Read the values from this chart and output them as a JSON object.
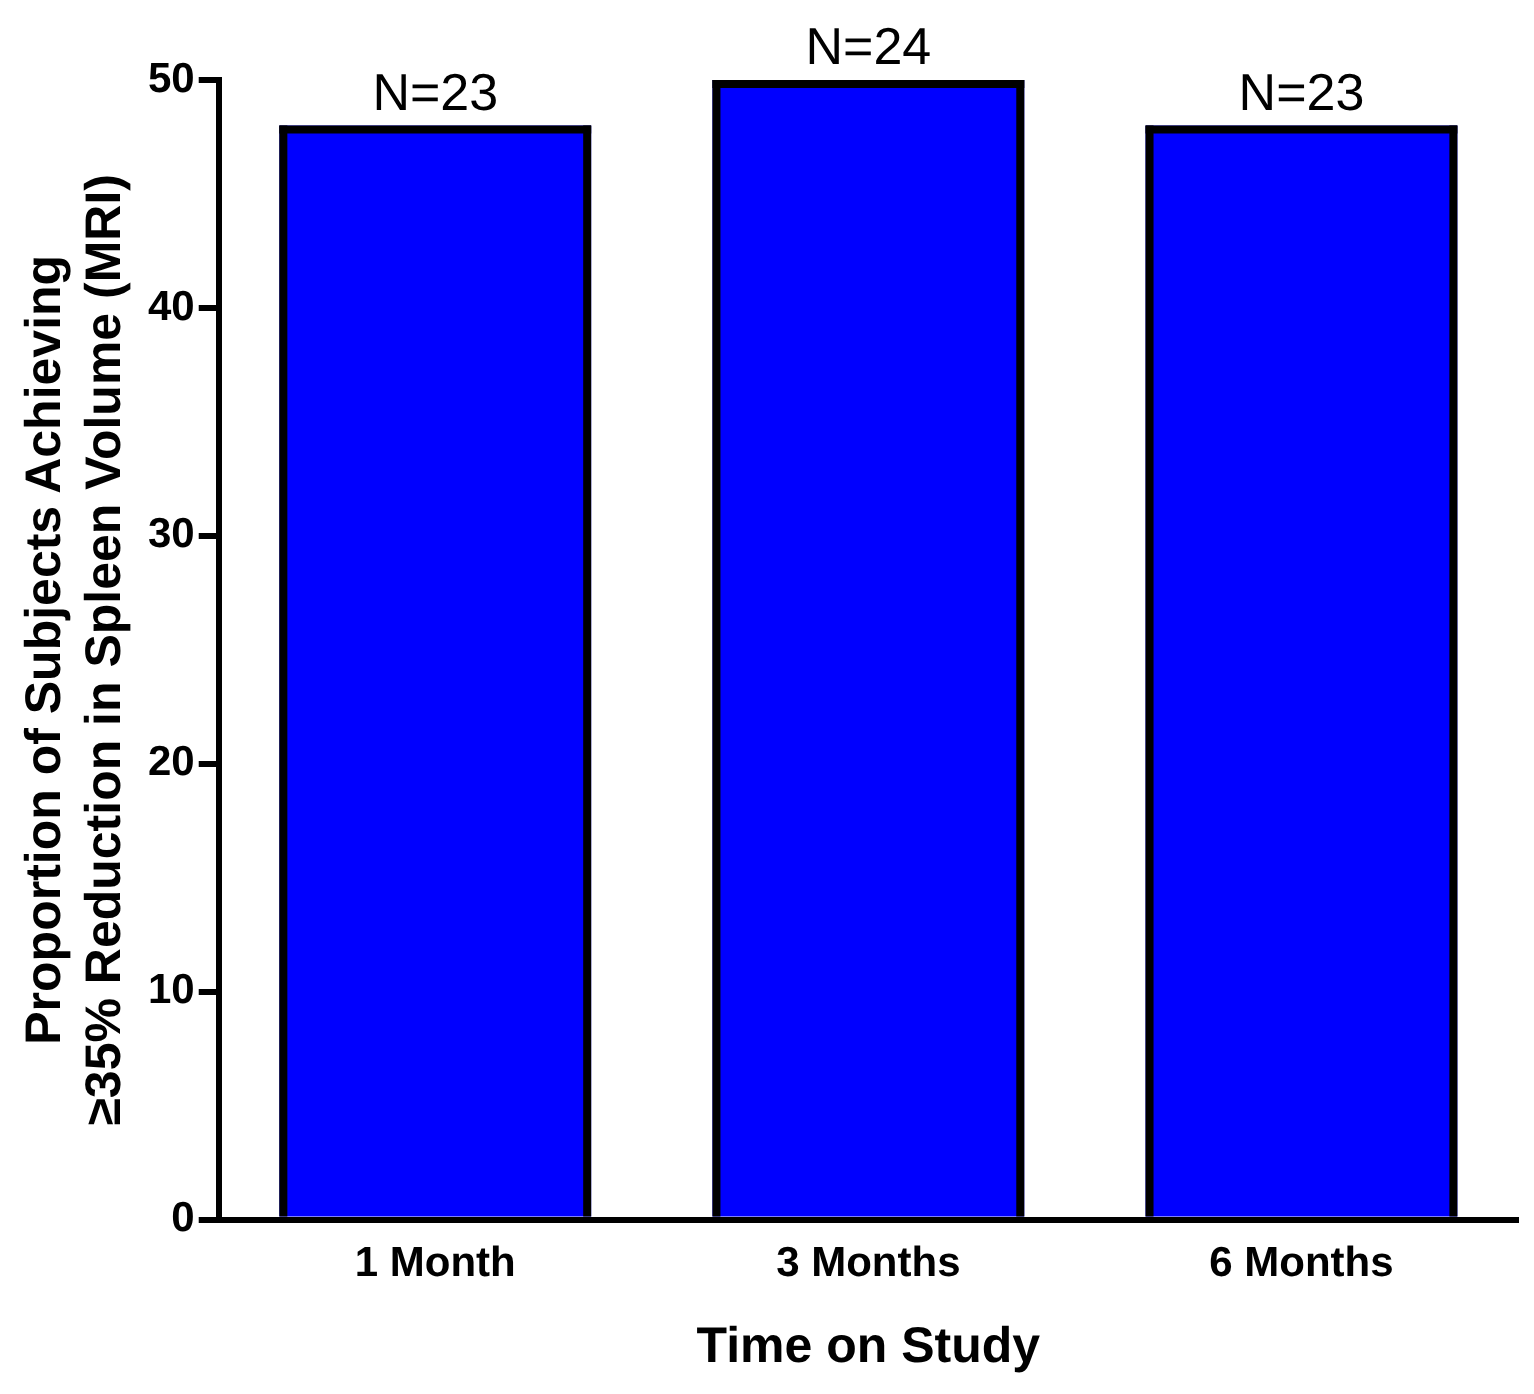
{
  "chart_data": {
    "type": "bar",
    "xlabel": "Time on Study",
    "ylabel": "Proportion of Subjects Achieving\n≥35% Reduction in Spleen Volume (MRI)",
    "categories": [
      "1 Month",
      "3 Months",
      "6 Months"
    ],
    "values": [
      48,
      50,
      48
    ],
    "color": "#0000ff",
    "ylim": [
      0,
      50
    ],
    "yticks": [
      0,
      10,
      20,
      30,
      40,
      50
    ],
    "grid": false,
    "legend": false,
    "annotations": [
      {
        "text": "N=23",
        "x": "1 Month",
        "y": 48
      },
      {
        "text": "N=24",
        "x": "3 Months",
        "y": 50
      },
      {
        "text": "N=23",
        "x": "6 Months",
        "y": 48
      }
    ]
  }
}
